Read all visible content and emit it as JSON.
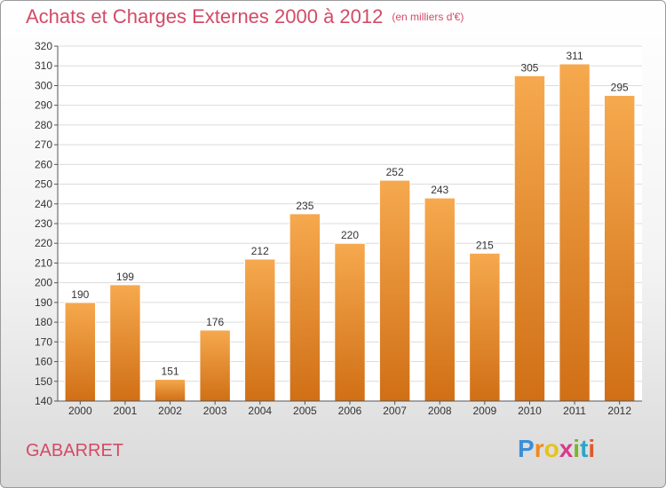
{
  "title": "Achats et Charges Externes 2000 à 2012",
  "unit": "(en milliers d'€)",
  "location": "GABARRET",
  "logo": {
    "letters": [
      "P",
      "r",
      "o",
      "x",
      "i",
      "t",
      "i"
    ],
    "colors": [
      "#3a8fd6",
      "#f08a1c",
      "#e8c21a",
      "#d83a8c",
      "#7ab52a",
      "#2aa6c8",
      "#e05a2a"
    ]
  },
  "colors": {
    "bar_top": "#f6a94e",
    "bar_bottom": "#d06f16",
    "title": "#d44a66"
  },
  "chart_data": {
    "type": "bar",
    "title": "Achats et Charges Externes 2000 à 2012",
    "subtitle": "(en milliers d'€)",
    "categories": [
      "2000",
      "2001",
      "2002",
      "2003",
      "2004",
      "2005",
      "2006",
      "2007",
      "2008",
      "2009",
      "2010",
      "2011",
      "2012"
    ],
    "values": [
      190,
      199,
      151,
      176,
      212,
      235,
      220,
      252,
      243,
      215,
      305,
      311,
      295
    ],
    "ylim": [
      140,
      320
    ],
    "yticks": [
      140,
      150,
      160,
      170,
      180,
      190,
      200,
      210,
      220,
      230,
      240,
      250,
      260,
      270,
      280,
      290,
      300,
      310,
      320
    ],
    "grid": true,
    "data_labels": true
  }
}
